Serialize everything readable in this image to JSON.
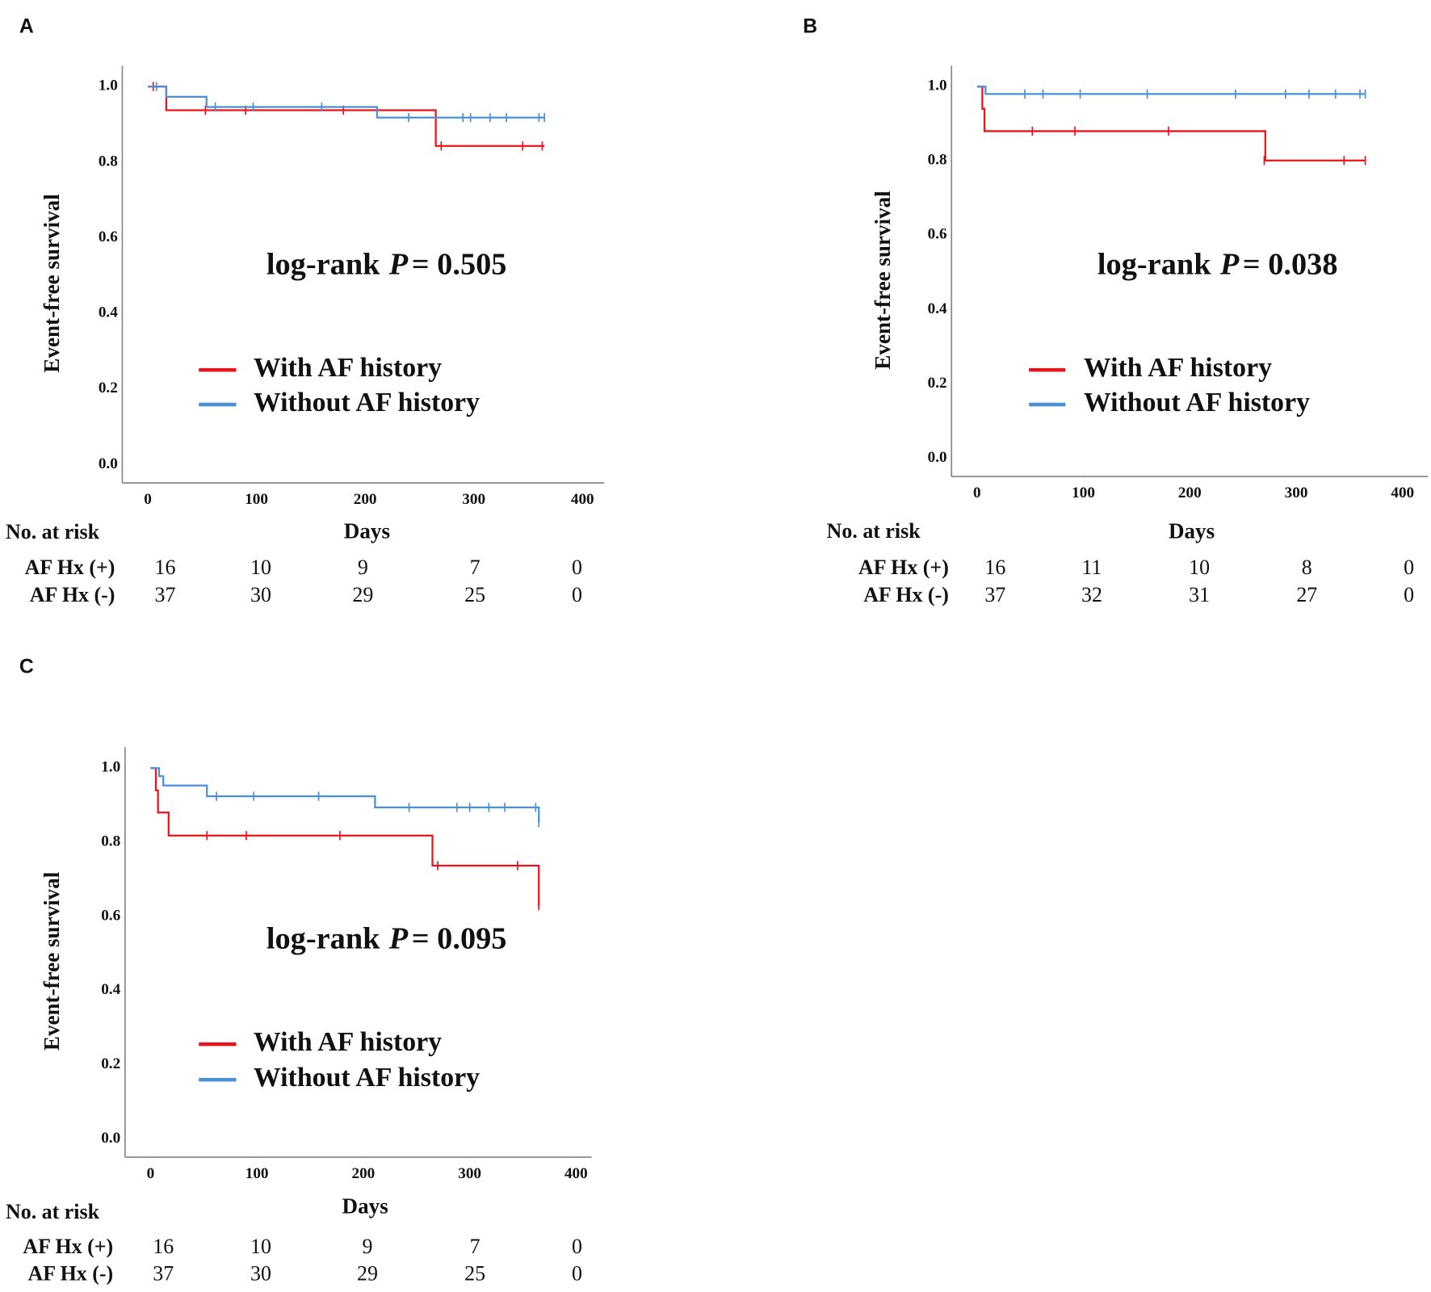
{
  "chart_data": [
    {
      "type": "step",
      "panel": "A",
      "xlabel": "Days",
      "ylabel": "Event-free survival",
      "annotation": [
        "log-rank",
        "P",
        "= 0.505"
      ],
      "xlim": [
        0,
        400
      ],
      "xticks": [
        0,
        100,
        200,
        300,
        400
      ],
      "ylim": [
        0,
        1
      ],
      "yticks": [
        {
          "value": 0,
          "label": "0.0"
        },
        0.2,
        0.4,
        0.6,
        0.8,
        {
          "value": 1,
          "label": "1.0"
        }
      ],
      "legend": "center",
      "series": [
        {
          "name": "With AF history",
          "color": "#e8141c",
          "x": [
            0,
            17,
            265,
            365
          ],
          "values": [
            1,
            0.9375,
            0.843,
            0.843
          ],
          "censor": {
            "x": [
              5,
              53,
              90,
              180,
              270,
              345,
              363
            ],
            "values": [
              1,
              0.9375,
              0.9375,
              0.9375,
              0.843,
              0.843,
              0.843
            ]
          }
        },
        {
          "name": "Without AF history",
          "color": "#4a90d9",
          "x": [
            0,
            17,
            54,
            211,
            365
          ],
          "values": [
            1,
            0.973,
            0.946,
            0.918,
            0.918
          ],
          "censor": {
            "x": [
              8,
              62,
              97,
              160,
              240,
              290,
              297,
              315,
              330,
              360,
              365
            ],
            "values": [
              1,
              0.946,
              0.946,
              0.946,
              0.918,
              0.918,
              0.918,
              0.918,
              0.918,
              0.918,
              0.918
            ]
          }
        }
      ],
      "risk_table": {
        "title": "No. at risk",
        "rows": [
          {
            "label": "AF Hx (+)",
            "values": [
              16,
              10,
              9,
              7,
              0
            ]
          },
          {
            "label": "AF Hx (-)",
            "values": [
              37,
              30,
              29,
              25,
              0
            ]
          }
        ]
      }
    },
    {
      "type": "step",
      "panel": "B",
      "xlabel": "Days",
      "ylabel": "Event-free survival",
      "annotation": [
        "log-rank",
        "P",
        "= 0.038"
      ],
      "xlim": [
        0,
        400
      ],
      "xticks": [
        0,
        100,
        200,
        300,
        400
      ],
      "ylim": [
        0,
        1
      ],
      "yticks": [
        {
          "value": 0,
          "label": "0.0"
        },
        0.2,
        0.4,
        0.6,
        0.8,
        {
          "value": 1,
          "label": "1.0"
        }
      ],
      "legend": "center",
      "series": [
        {
          "name": "With AF history",
          "color": "#e8141c",
          "x": [
            0,
            5,
            7,
            271,
            365
          ],
          "values": [
            1,
            0.94,
            0.88,
            0.801,
            0.801
          ],
          "censor": {
            "x": [
              52,
              92,
              180,
              270,
              345,
              365
            ],
            "values": [
              0.88,
              0.88,
              0.88,
              0.801,
              0.801,
              0.801
            ]
          }
        },
        {
          "name": "Without AF history",
          "color": "#4a90d9",
          "x": [
            0,
            8,
            365
          ],
          "values": [
            1,
            0.98,
            0.98
          ],
          "censor": {
            "x": [
              45,
              62,
              97,
              160,
              243,
              290,
              312,
              337,
              360,
              365
            ],
            "values": [
              0.98,
              0.98,
              0.98,
              0.98,
              0.98,
              0.98,
              0.98,
              0.98,
              0.98,
              0.98
            ]
          }
        }
      ],
      "risk_table": {
        "title": "No. at risk",
        "rows": [
          {
            "label": "AF Hx (+)",
            "values": [
              16,
              11,
              10,
              8,
              0
            ]
          },
          {
            "label": "AF Hx (-)",
            "values": [
              37,
              32,
              31,
              27,
              0
            ]
          }
        ]
      }
    },
    {
      "type": "step",
      "panel": "C",
      "xlabel": "Days",
      "ylabel": "Event-free survival",
      "annotation": [
        "log-rank",
        "P",
        "= 0.095"
      ],
      "xlim": [
        0,
        400
      ],
      "xticks": [
        0,
        100,
        200,
        300,
        400
      ],
      "ylim": [
        0,
        1
      ],
      "yticks": [
        {
          "value": 0,
          "label": "0.0"
        },
        0.2,
        0.4,
        0.6,
        0.8,
        {
          "value": 1,
          "label": "1.0"
        }
      ],
      "legend": "center",
      "series": [
        {
          "name": "With AF history",
          "color": "#e8141c",
          "x": [
            0,
            5,
            7,
            17,
            265,
            365
          ],
          "values": [
            1,
            0.94,
            0.88,
            0.818,
            0.737,
            0.629
          ],
          "censor": {
            "x": [
              53,
              90,
              178,
              270,
              345,
              365
            ],
            "values": [
              0.818,
              0.818,
              0.818,
              0.737,
              0.737,
              0.629
            ]
          }
        },
        {
          "name": "Without AF history",
          "color": "#4a90d9",
          "x": [
            0,
            8,
            12,
            53,
            211,
            365
          ],
          "values": [
            1,
            0.978,
            0.953,
            0.924,
            0.894,
            0.853
          ],
          "censor": {
            "x": [
              62,
              97,
              158,
              243,
              288,
              300,
              318,
              333,
              362,
              365
            ],
            "values": [
              0.924,
              0.924,
              0.924,
              0.894,
              0.894,
              0.894,
              0.894,
              0.894,
              0.894,
              0.853
            ]
          }
        }
      ],
      "risk_table": {
        "title": "No. at risk",
        "rows": [
          {
            "label": "AF Hx (+)",
            "values": [
              16,
              10,
              9,
              7,
              0
            ]
          },
          {
            "label": "AF Hx (-)",
            "values": [
              37,
              30,
              29,
              25,
              0
            ]
          }
        ]
      }
    }
  ]
}
